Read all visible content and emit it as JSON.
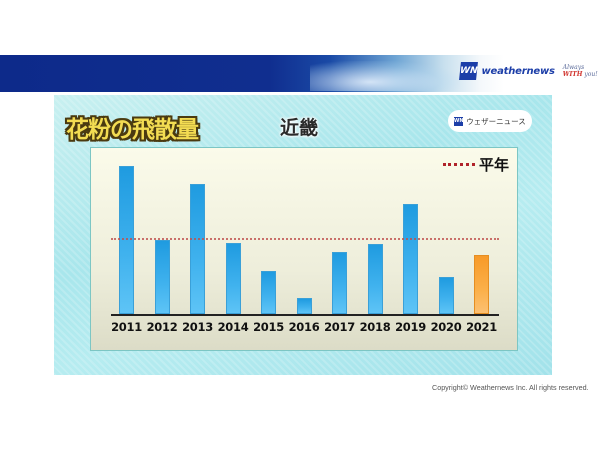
{
  "header": {
    "brand": "weathernews",
    "logo_mark": "WN",
    "tagline_prefix": "Always ",
    "tagline_emph": "WITH",
    "tagline_suffix": " you!",
    "banner_color": "#0d2a8a"
  },
  "card": {
    "title": "花粉の飛散量",
    "region": "近畿",
    "badge_mark": "WN",
    "badge_text": "ウェザーニュース"
  },
  "chart_data": {
    "type": "bar",
    "title": "花粉の飛散量",
    "subtitle": "近畿",
    "xlabel": "",
    "ylabel": "",
    "units": "percent of normal (estimated; no y-axis shown)",
    "categories": [
      "2011",
      "2012",
      "2013",
      "2014",
      "2015",
      "2016",
      "2017",
      "2018",
      "2019",
      "2020",
      "2021"
    ],
    "values": [
      195,
      97,
      171,
      93,
      57,
      21,
      82,
      92,
      145,
      49,
      78
    ],
    "highlight_index": 10,
    "colors": {
      "bar": "#2aa6e8",
      "highlight": "#f8a43a",
      "reference": "#c0504d"
    },
    "reference_line": {
      "label": "平年",
      "value": 100,
      "style": "dotted"
    },
    "legend": {
      "position": "top-right",
      "entries": [
        "平年"
      ]
    },
    "grid": false,
    "ylim": [
      0,
      210
    ]
  },
  "footer": {
    "copyright": "Copyright© Weathernews Inc. All rights reserved."
  }
}
